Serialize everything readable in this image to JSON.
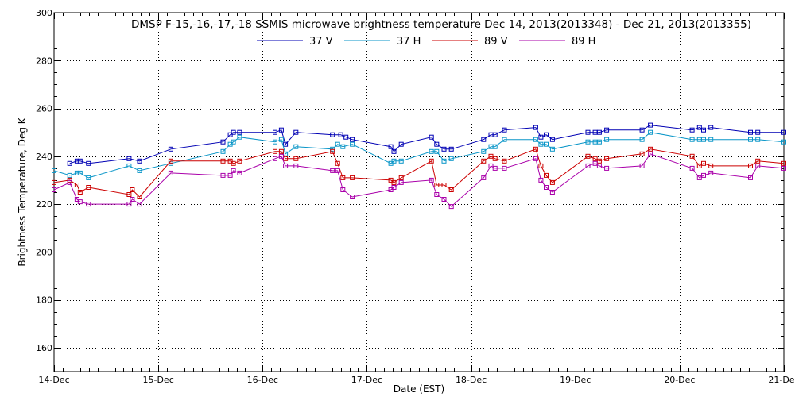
{
  "chart_data": {
    "type": "line",
    "title": "DMSP F-15,-16,-17,-18 SSMIS microwave brightness temperature Dec 14, 2013(2013348) - Dec 21, 2013(2013355)",
    "xlabel": "Date (EST)",
    "ylabel": "Brightness Temperature, Deg K",
    "xlim": [
      0,
      7
    ],
    "ylim": [
      150,
      300
    ],
    "grid": true,
    "legend_position": "top-center",
    "x_tick_labels": [
      "14-Dec",
      "15-Dec",
      "16-Dec",
      "17-Dec",
      "18-Dec",
      "19-Dec",
      "20-Dec",
      "21-Dec"
    ],
    "x_tick_values": [
      0,
      1,
      2,
      3,
      4,
      5,
      6,
      7
    ],
    "y_tick_values": [
      160,
      180,
      200,
      220,
      240,
      260,
      280,
      300
    ],
    "series": [
      {
        "name": "37 V",
        "color": "#0000b4",
        "x": [
          0.15,
          0.22,
          0.25,
          0.33,
          0.72,
          0.82,
          1.12,
          1.62,
          1.69,
          1.72,
          1.78,
          2.12,
          2.18,
          2.22,
          2.32,
          2.67,
          2.75,
          2.8,
          2.86,
          3.23,
          3.26,
          3.33,
          3.62,
          3.67,
          3.74,
          3.81,
          4.12,
          4.19,
          4.23,
          4.32,
          4.62,
          4.67,
          4.72,
          4.78,
          5.12,
          5.19,
          5.23,
          5.3,
          5.64,
          5.72,
          6.12,
          6.19,
          6.23,
          6.3,
          6.68,
          6.75,
          7.0
        ],
        "values": [
          237,
          238,
          238,
          237,
          239,
          238,
          243,
          246,
          249,
          250,
          250,
          250,
          251,
          245,
          250,
          249,
          249,
          248,
          247,
          244,
          242,
          245,
          248,
          245,
          243,
          243,
          247,
          249,
          249,
          251,
          252,
          248,
          249,
          247,
          250,
          250,
          250,
          251,
          251,
          253,
          251,
          252,
          251,
          252,
          250,
          250,
          250
        ]
      },
      {
        "name": "37 H",
        "color": "#0a96c8",
        "x": [
          0.0,
          0.15,
          0.22,
          0.25,
          0.33,
          0.72,
          0.82,
          1.12,
          1.62,
          1.69,
          1.72,
          1.78,
          2.12,
          2.18,
          2.22,
          2.32,
          2.67,
          2.72,
          2.77,
          2.86,
          3.23,
          3.26,
          3.33,
          3.62,
          3.67,
          3.74,
          3.81,
          4.12,
          4.19,
          4.23,
          4.32,
          4.62,
          4.67,
          4.72,
          4.78,
          5.12,
          5.19,
          5.23,
          5.3,
          5.64,
          5.72,
          6.12,
          6.19,
          6.23,
          6.3,
          6.68,
          6.75,
          7.0
        ],
        "values": [
          234,
          232,
          233,
          233,
          231,
          236,
          234,
          237,
          242,
          245,
          246,
          248,
          246,
          247,
          241,
          244,
          243,
          245,
          244,
          245,
          237,
          238,
          238,
          242,
          242,
          238,
          239,
          242,
          244,
          244,
          247,
          247,
          245,
          245,
          243,
          246,
          246,
          246,
          247,
          247,
          250,
          247,
          247,
          247,
          247,
          247,
          247,
          246
        ]
      },
      {
        "name": "89 V",
        "color": "#cc0000",
        "x": [
          0.0,
          0.15,
          0.22,
          0.25,
          0.33,
          0.72,
          0.75,
          0.82,
          1.12,
          1.62,
          1.69,
          1.72,
          1.78,
          2.12,
          2.18,
          2.22,
          2.32,
          2.67,
          2.72,
          2.77,
          2.86,
          3.23,
          3.26,
          3.33,
          3.62,
          3.67,
          3.74,
          3.81,
          4.12,
          4.19,
          4.23,
          4.32,
          4.62,
          4.67,
          4.72,
          4.78,
          5.12,
          5.19,
          5.23,
          5.3,
          5.64,
          5.72,
          6.12,
          6.19,
          6.23,
          6.3,
          6.68,
          6.75,
          7.0
        ],
        "values": [
          229,
          230,
          228,
          225,
          227,
          224,
          226,
          223,
          238,
          238,
          238,
          237,
          238,
          242,
          242,
          239,
          239,
          242,
          237,
          231,
          231,
          230,
          229,
          231,
          238,
          228,
          228,
          226,
          238,
          240,
          239,
          238,
          243,
          236,
          232,
          229,
          240,
          239,
          238,
          239,
          241,
          243,
          240,
          236,
          237,
          236,
          236,
          238,
          237
        ]
      },
      {
        "name": "89 H",
        "color": "#aa00aa",
        "x": [
          0.0,
          0.15,
          0.22,
          0.25,
          0.33,
          0.72,
          0.75,
          0.82,
          1.12,
          1.62,
          1.69,
          1.72,
          1.78,
          2.12,
          2.18,
          2.22,
          2.32,
          2.67,
          2.72,
          2.77,
          2.86,
          3.23,
          3.26,
          3.33,
          3.62,
          3.67,
          3.74,
          3.81,
          4.12,
          4.19,
          4.23,
          4.32,
          4.62,
          4.67,
          4.72,
          4.78,
          5.12,
          5.19,
          5.23,
          5.3,
          5.64,
          5.72,
          6.12,
          6.19,
          6.23,
          6.3,
          6.68,
          6.75,
          7.0
        ],
        "values": [
          226,
          229,
          222,
          221,
          220,
          220,
          222,
          220,
          233,
          232,
          232,
          234,
          233,
          239,
          240,
          236,
          236,
          234,
          234,
          226,
          223,
          226,
          227,
          229,
          230,
          224,
          222,
          219,
          231,
          236,
          235,
          235,
          239,
          230,
          227,
          225,
          236,
          237,
          236,
          235,
          236,
          241,
          235,
          231,
          232,
          233,
          231,
          236,
          235
        ]
      }
    ]
  }
}
